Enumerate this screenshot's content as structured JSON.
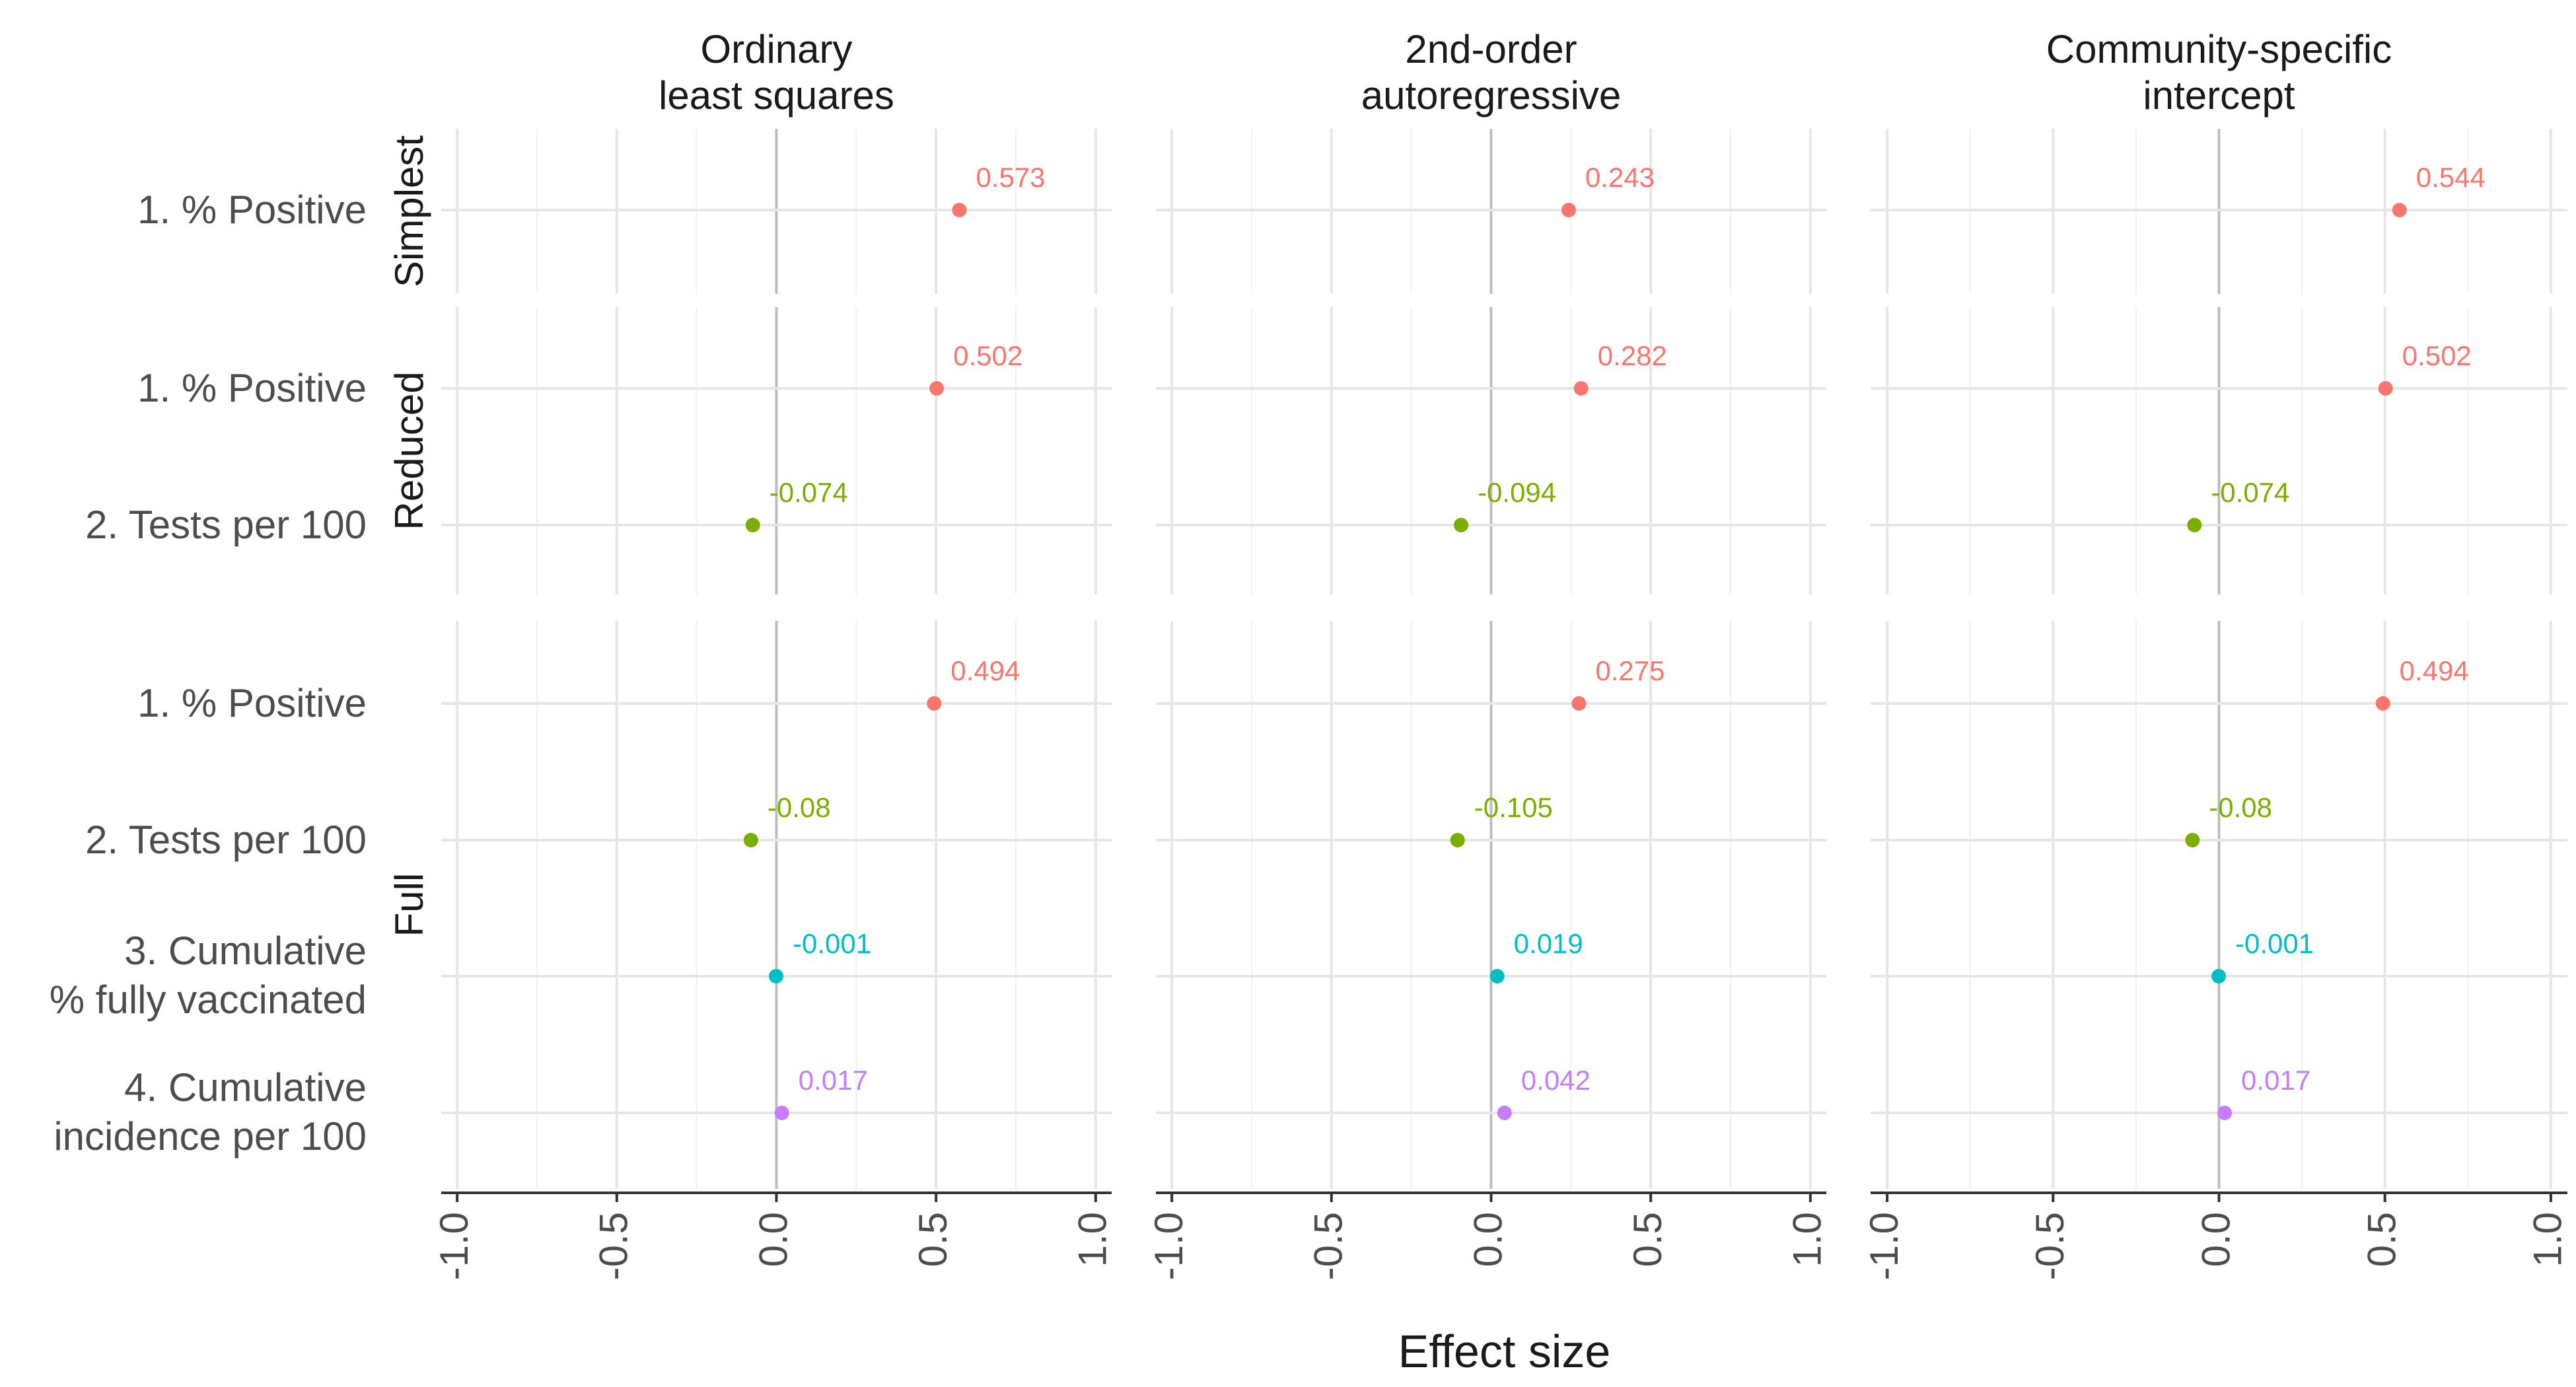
{
  "chart_data": {
    "type": "scatter",
    "xlabel": "Effect size",
    "xlim": [
      -1.05,
      1.05
    ],
    "x_ticks": [
      "-1.0",
      "-0.5",
      "0.0",
      "0.5",
      "1.0"
    ],
    "x_tick_values": [
      -1.0,
      -0.5,
      0.0,
      0.5,
      1.0
    ],
    "grid": true,
    "legend": "none",
    "columns": [
      {
        "title_line1": "Ordinary",
        "title_line2": "least squares"
      },
      {
        "title_line1": "2nd-order",
        "title_line2": "autoregressive"
      },
      {
        "title_line1": "Community-specific",
        "title_line2": "intercept"
      }
    ],
    "predictors": [
      {
        "line1": "1. % Positive",
        "line2": "",
        "color": "#F8766D"
      },
      {
        "line1": "2. Tests per 100",
        "line2": "",
        "color": "#7CAE00"
      },
      {
        "line1": "3. Cumulative",
        "line2": "% fully vaccinated",
        "color": "#00BFC4"
      },
      {
        "line1": "4. Cumulative",
        "line2": "incidence per 100",
        "color": "#C77CFF"
      }
    ],
    "rows": [
      {
        "name": "Simplest",
        "predictors": [
          0
        ],
        "values": [
          [
            0.573
          ],
          [
            0.243
          ],
          [
            0.544
          ]
        ],
        "labels": [
          [
            "0.573"
          ],
          [
            "0.243"
          ],
          [
            "0.544"
          ]
        ]
      },
      {
        "name": "Reduced",
        "predictors": [
          0,
          1
        ],
        "values": [
          [
            0.502,
            -0.074
          ],
          [
            0.282,
            -0.094
          ],
          [
            0.502,
            -0.074
          ]
        ],
        "labels": [
          [
            "0.502",
            "-0.074"
          ],
          [
            "0.282",
            "-0.094"
          ],
          [
            "0.502",
            "-0.074"
          ]
        ]
      },
      {
        "name": "Full",
        "predictors": [
          0,
          1,
          2,
          3
        ],
        "values": [
          [
            0.494,
            -0.08,
            -0.001,
            0.017
          ],
          [
            0.275,
            -0.105,
            0.019,
            0.042
          ],
          [
            0.494,
            -0.08,
            -0.001,
            0.017
          ]
        ],
        "labels": [
          [
            "0.494",
            "-0.08",
            "-0.001",
            "0.017"
          ],
          [
            "0.275",
            "-0.105",
            "0.019",
            "0.042"
          ],
          [
            "0.494",
            "-0.08",
            "-0.001",
            "0.017"
          ]
        ]
      }
    ]
  }
}
